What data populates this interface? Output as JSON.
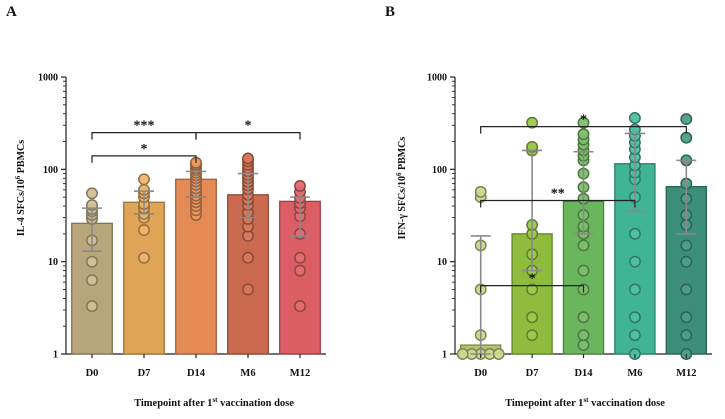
{
  "chart_data": [
    {
      "type": "bar",
      "panel": "A",
      "title": "",
      "categories": [
        "D0",
        "D7",
        "D14",
        "M6",
        "M12"
      ],
      "xlabel": "Timepoint after 1st vaccination dose",
      "xlabel_parts": {
        "before": "Timepoint after 1",
        "sup": "st",
        "after": " vaccination dose"
      },
      "ylabel": "IL-4 SFCs/10^6 PBMCs",
      "ylabel_parts": {
        "before": "IL-4 SFCs/10",
        "sup": "6",
        "after": " PBMCs"
      },
      "yscale": "log",
      "ylim": [
        1,
        1000
      ],
      "yticks": [
        1,
        10,
        100,
        1000
      ],
      "ytick_labels": [
        "1",
        "10",
        "100",
        "1000"
      ],
      "bar_colors": [
        "#B9A57A",
        "#E0A456",
        "#E38A55",
        "#CB6A4E",
        "#DA5E63"
      ],
      "point_colors": [
        "#D2BF92",
        "#EDB56A",
        "#EE9A63",
        "#D9795B",
        "#E36C70"
      ],
      "values": [
        26,
        44,
        78,
        53,
        45
      ],
      "error_low": [
        13,
        33,
        50,
        30,
        19
      ],
      "error_high": [
        38,
        58,
        95,
        90,
        50
      ],
      "points": [
        [
          3.3,
          6.3,
          10,
          17,
          29,
          32,
          35,
          37,
          41,
          55
        ],
        [
          11,
          22,
          30,
          33,
          38,
          42,
          50,
          55,
          60,
          78
        ],
        [
          32,
          36,
          40,
          44,
          48,
          52,
          57,
          62,
          68,
          74,
          80,
          86,
          92,
          98,
          103,
          108,
          113,
          118
        ],
        [
          5,
          11,
          19,
          24,
          29,
          34,
          41,
          47,
          53,
          61,
          67,
          73,
          80,
          87,
          95,
          103,
          112,
          122,
          131
        ],
        [
          3.3,
          8,
          11,
          20,
          31,
          38,
          43,
          49,
          57,
          66
        ]
      ],
      "significance": [
        {
          "from": "D0",
          "to": "D14",
          "label": "***",
          "value": 250
        },
        {
          "from": "D14",
          "to": "M12",
          "label": "*",
          "value": 250
        },
        {
          "from": "D0",
          "to": "D14",
          "label": "*",
          "value": 140
        }
      ]
    },
    {
      "type": "bar",
      "panel": "B",
      "title": "",
      "categories": [
        "D0",
        "D7",
        "D14",
        "M6",
        "M12"
      ],
      "xlabel": "Timepoint after 1st vaccination dose",
      "xlabel_parts": {
        "before": "Timepoint after 1",
        "sup": "st",
        "after": " vaccination dose"
      },
      "ylabel": "IFN-γ SFCs/10^6 PBMCs",
      "ylabel_parts": {
        "before": "IFN-γ SFCs/10",
        "sup": "6",
        "after": " PBMCs"
      },
      "yscale": "log",
      "ylim": [
        1,
        1000
      ],
      "yticks": [
        1,
        10,
        100,
        1000
      ],
      "ytick_labels": [
        "1",
        "10",
        "100",
        "1000"
      ],
      "bar_colors": [
        "#B6C36C",
        "#8EBC3D",
        "#69B65C",
        "#3FB596",
        "#3B8E7A"
      ],
      "point_colors": [
        "#CCD88E",
        "#9CC94A",
        "#7CC06A",
        "#4EC0A3",
        "#4C9E89"
      ],
      "values": [
        1.25,
        20,
        45,
        115,
        65
      ],
      "error_low": [
        1,
        8,
        20,
        35,
        20
      ],
      "error_high": [
        19,
        160,
        155,
        245,
        125
      ],
      "points": [
        [
          1,
          1,
          1,
          1,
          1,
          1.6,
          5,
          15,
          50,
          57
        ],
        [
          1.6,
          2.5,
          5,
          8,
          12,
          20,
          25,
          160,
          175,
          320
        ],
        [
          1.25,
          1.6,
          2.5,
          5,
          8,
          15,
          20,
          24,
          32,
          48,
          64,
          90,
          125,
          140,
          160,
          185,
          210,
          240,
          320
        ],
        [
          1,
          1.6,
          2.5,
          5,
          10,
          20,
          50,
          78,
          92,
          110,
          135,
          165,
          195,
          230,
          270,
          360
        ],
        [
          1,
          1.6,
          2.5,
          5,
          10,
          15,
          25,
          32,
          48,
          70,
          125,
          220,
          350
        ]
      ],
      "significance": [
        {
          "from": "D0",
          "to": "D14",
          "label": "*",
          "value": 5.5
        },
        {
          "from": "D0",
          "to": "M6",
          "label": "**",
          "value": 46
        },
        {
          "from": "D0",
          "to": "M12",
          "label": "*",
          "value": 290
        }
      ]
    }
  ]
}
